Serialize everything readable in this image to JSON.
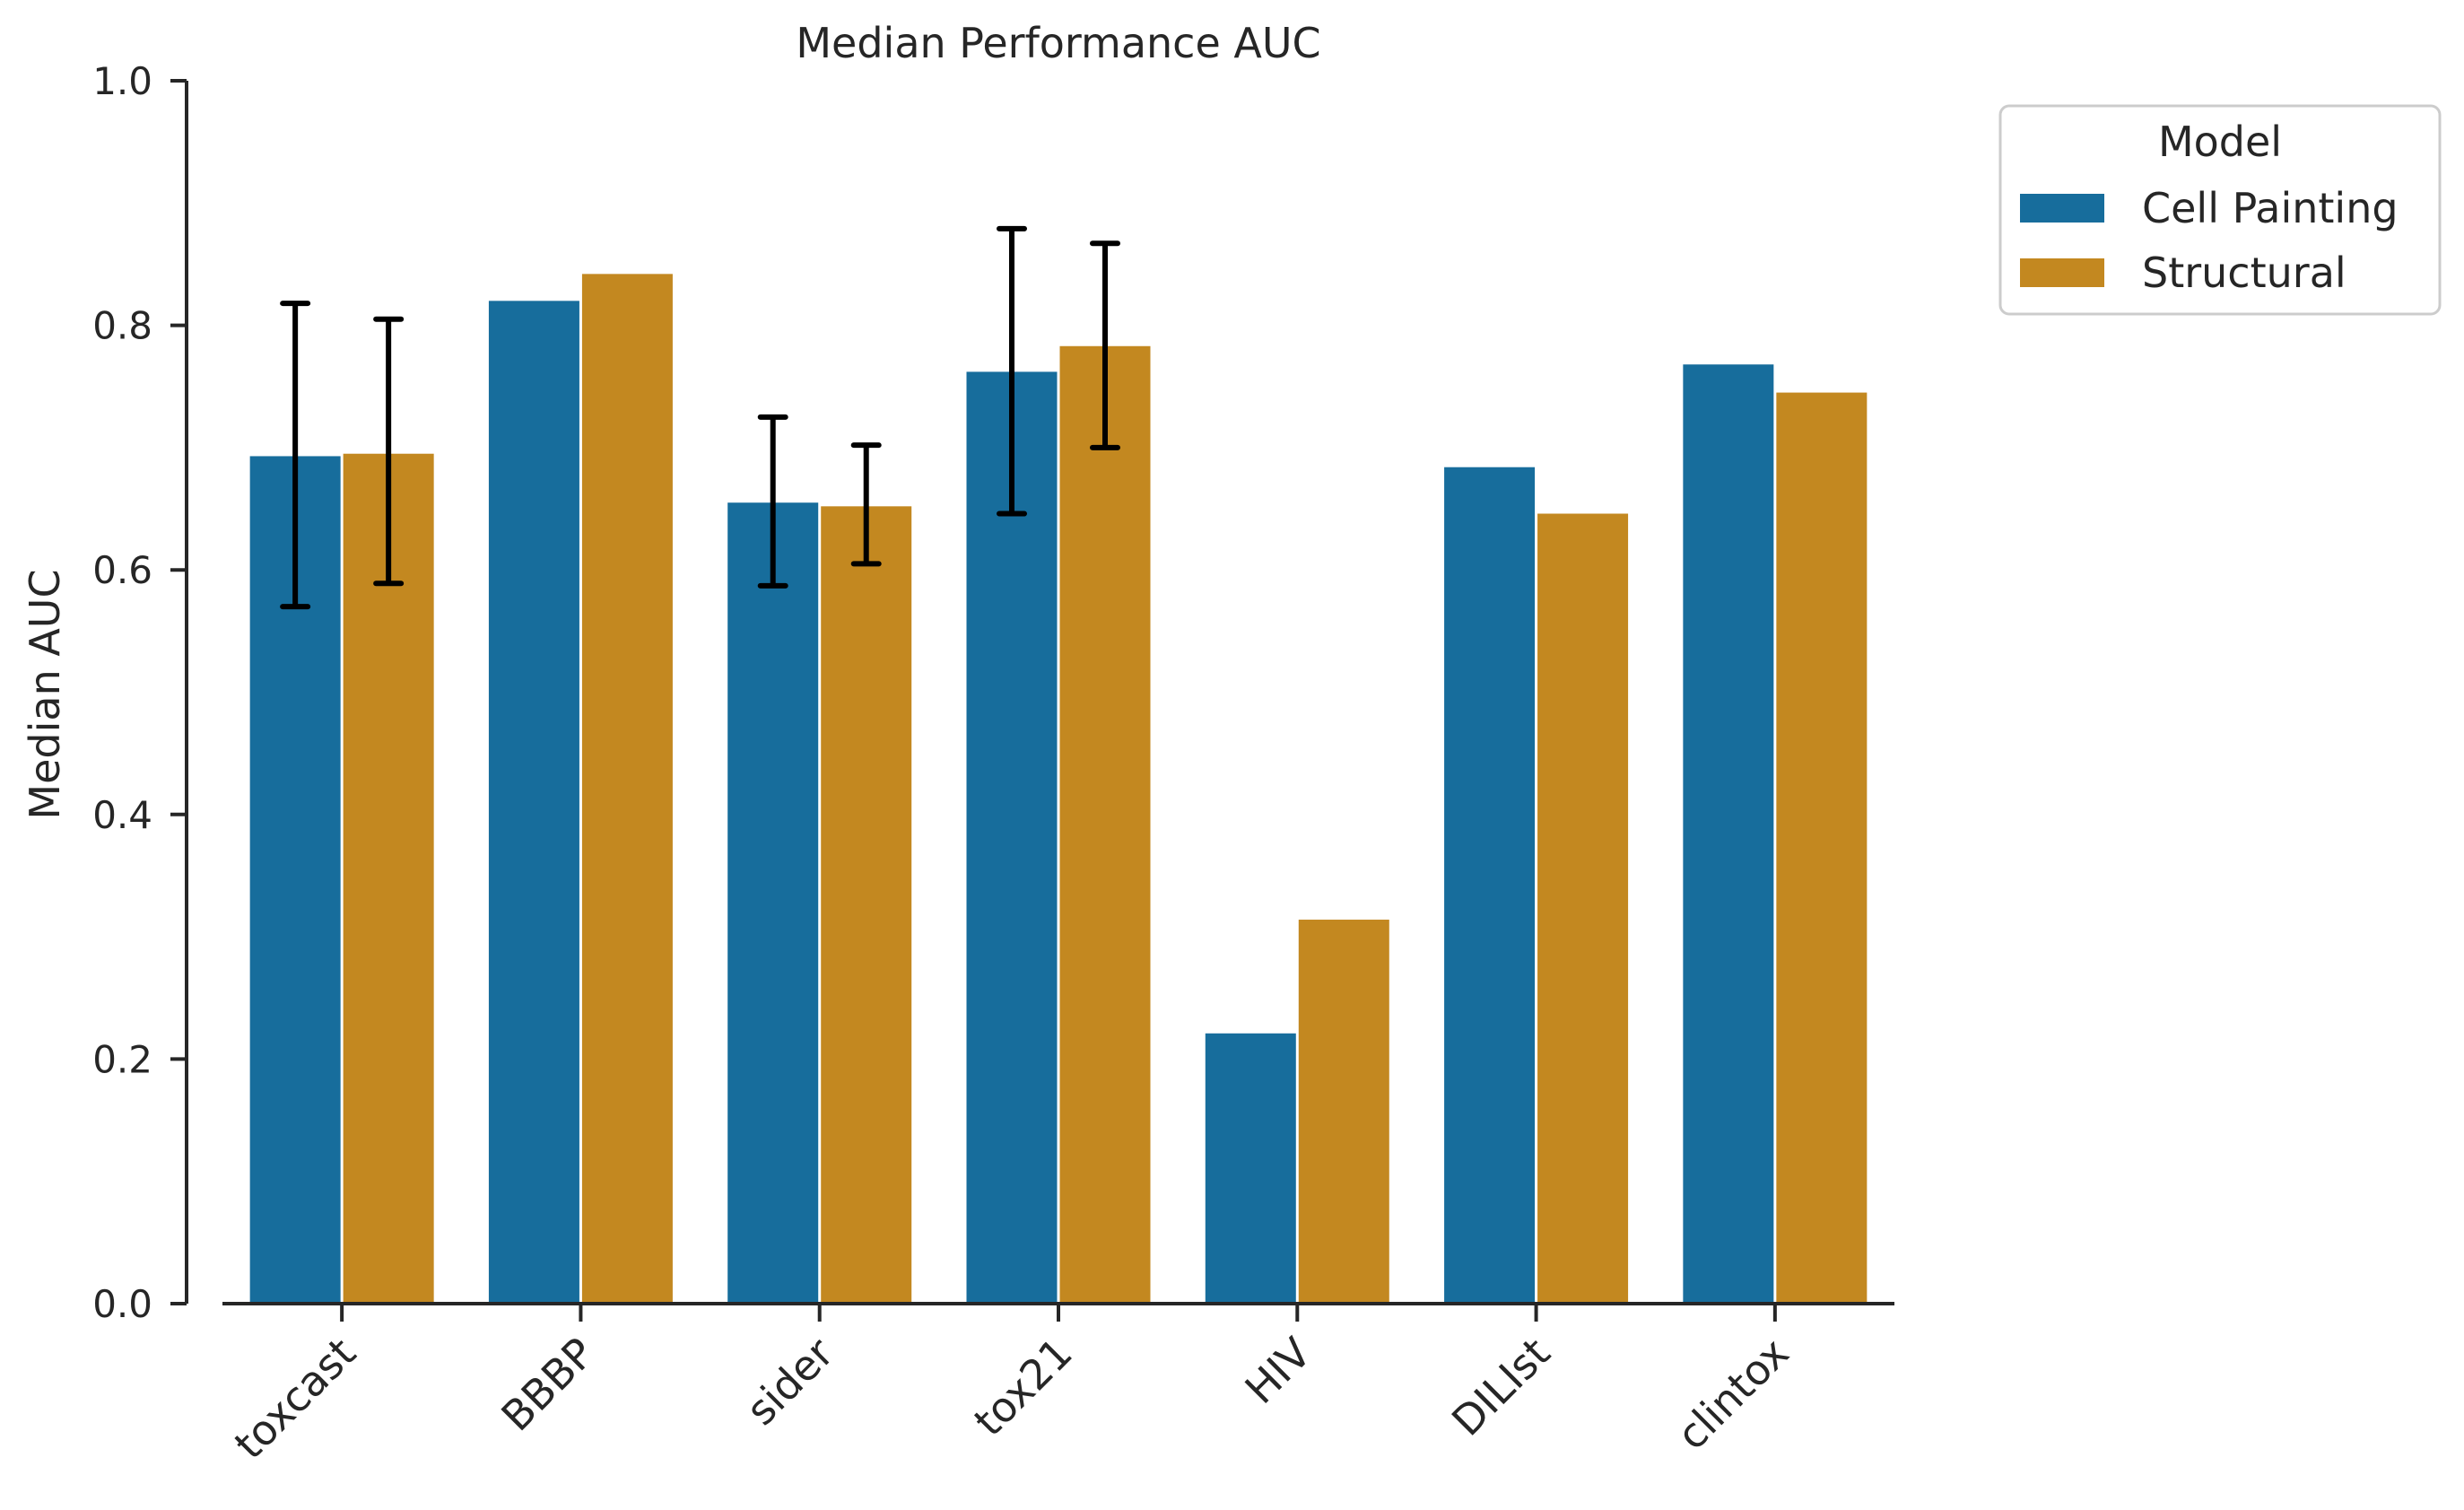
{
  "chart_data": {
    "type": "bar",
    "title": "Median Performance AUC",
    "xlabel": "",
    "ylabel": "Median AUC",
    "categories": [
      "toxcast",
      "BBBP",
      "sider",
      "tox21",
      "HIV",
      "DILIst",
      "clintox"
    ],
    "series": [
      {
        "name": "Cell Painting",
        "color": "#176d9c",
        "values": [
          0.693,
          0.82,
          0.655,
          0.762,
          0.221,
          0.684,
          0.768
        ],
        "error_low": [
          0.57,
          null,
          0.587,
          0.646,
          null,
          null,
          null
        ],
        "error_high": [
          0.818,
          null,
          0.725,
          0.879,
          null,
          null,
          null
        ]
      },
      {
        "name": "Structural",
        "color": "#c38820",
        "values": [
          0.695,
          0.842,
          0.652,
          0.783,
          0.314,
          0.646,
          0.745
        ],
        "error_low": [
          0.589,
          null,
          0.605,
          0.7,
          null,
          null,
          null
        ],
        "error_high": [
          0.805,
          null,
          0.702,
          0.867,
          null,
          null,
          null
        ]
      }
    ],
    "ylim": [
      0,
      1.0
    ],
    "yticks": [
      "0.0",
      "0.2",
      "0.4",
      "0.6",
      "0.8",
      "1.0"
    ],
    "grid": false,
    "legend": {
      "title": "Model",
      "placement": "outside-top-right"
    }
  }
}
